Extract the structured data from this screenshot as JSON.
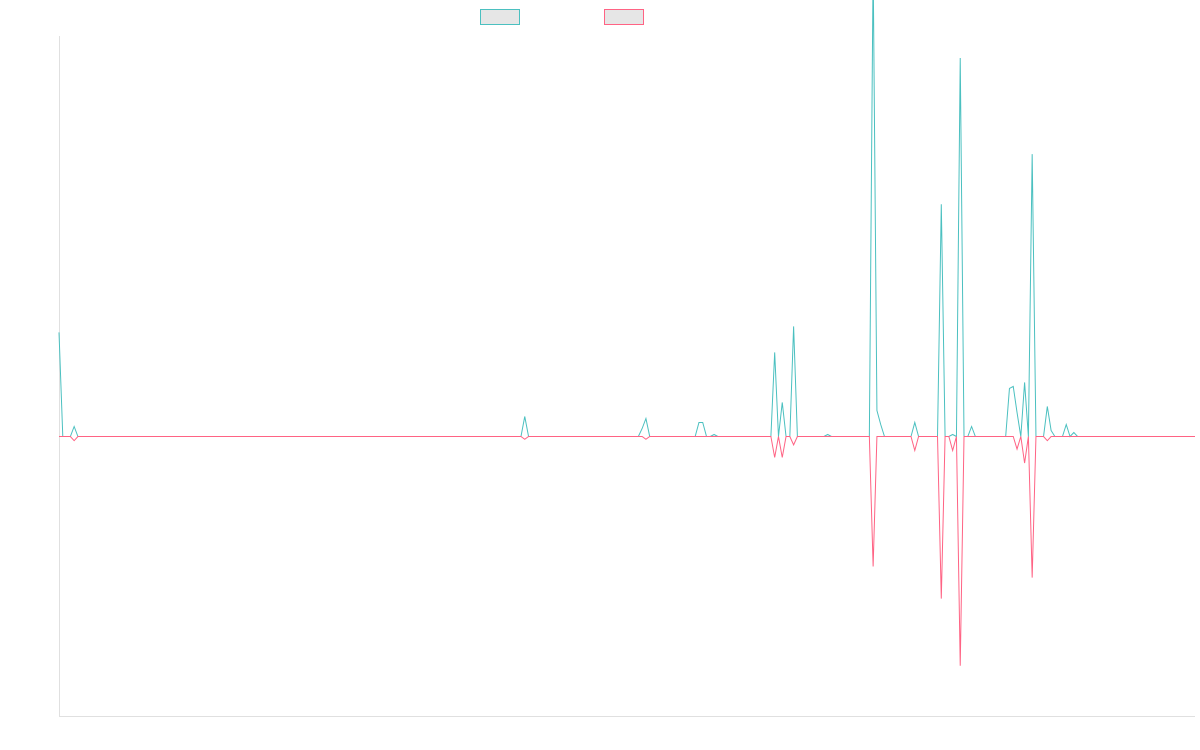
{
  "chart_data": {
    "type": "line",
    "title": "",
    "xlabel": "",
    "ylabel": "",
    "grid": false,
    "legend_position": "top-center",
    "ylim": [
      -100,
      100
    ],
    "x_count": 301,
    "series": [
      {
        "name": "",
        "color": "#4bc0c0",
        "baseline": 0,
        "points": [
          [
            0,
            26
          ],
          [
            1,
            0
          ],
          [
            2,
            0
          ],
          [
            3,
            0
          ],
          [
            4,
            2.5
          ],
          [
            5,
            0
          ],
          [
            122,
            0
          ],
          [
            123,
            5
          ],
          [
            124,
            0
          ],
          [
            153,
            0
          ],
          [
            154,
            2
          ],
          [
            155,
            4.5
          ],
          [
            156,
            0
          ],
          [
            168,
            0
          ],
          [
            169,
            3.5
          ],
          [
            170,
            3.5
          ],
          [
            171,
            0
          ],
          [
            172,
            0
          ],
          [
            173,
            0.5
          ],
          [
            174,
            0
          ],
          [
            188,
            0
          ],
          [
            189,
            21
          ],
          [
            190,
            0
          ],
          [
            191,
            8.5
          ],
          [
            192,
            0
          ],
          [
            193,
            0
          ],
          [
            194,
            27.5
          ],
          [
            195,
            0
          ],
          [
            202,
            0
          ],
          [
            203,
            0.5
          ],
          [
            204,
            0
          ],
          [
            214,
            0
          ],
          [
            215,
            118
          ],
          [
            216,
            6.5
          ],
          [
            217,
            3
          ],
          [
            218,
            0
          ],
          [
            225,
            0
          ],
          [
            226,
            3.5
          ],
          [
            227,
            0
          ],
          [
            232,
            0
          ],
          [
            233,
            58
          ],
          [
            234,
            0
          ],
          [
            235,
            0
          ],
          [
            236,
            0.5
          ],
          [
            237,
            0
          ],
          [
            238,
            94.5
          ],
          [
            239,
            0
          ],
          [
            240,
            0
          ],
          [
            241,
            2.5
          ],
          [
            242,
            0
          ],
          [
            250,
            0
          ],
          [
            251,
            12
          ],
          [
            252,
            12.5
          ],
          [
            253,
            6
          ],
          [
            254,
            0
          ],
          [
            255,
            13.5
          ],
          [
            256,
            0
          ],
          [
            257,
            70.5
          ],
          [
            258,
            0
          ],
          [
            260,
            0
          ],
          [
            261,
            7.5
          ],
          [
            262,
            1.5
          ],
          [
            263,
            0
          ],
          [
            264,
            0
          ],
          [
            265,
            0
          ],
          [
            266,
            3
          ],
          [
            267,
            0
          ],
          [
            268,
            1
          ],
          [
            269,
            0
          ],
          [
            300,
            0
          ]
        ]
      },
      {
        "name": "",
        "color": "#ff6384",
        "baseline": 0,
        "points": [
          [
            0,
            0
          ],
          [
            3,
            0
          ],
          [
            4,
            -1.5
          ],
          [
            5,
            0
          ],
          [
            122,
            0
          ],
          [
            123,
            -1
          ],
          [
            124,
            0
          ],
          [
            154,
            0
          ],
          [
            155,
            -1
          ],
          [
            156,
            0
          ],
          [
            188,
            0
          ],
          [
            189,
            -7.5
          ],
          [
            190,
            0
          ],
          [
            191,
            -7.5
          ],
          [
            192,
            0
          ],
          [
            193,
            0
          ],
          [
            194,
            -3
          ],
          [
            195,
            0
          ],
          [
            214,
            0
          ],
          [
            215,
            -46.5
          ],
          [
            216,
            0
          ],
          [
            225,
            0
          ],
          [
            226,
            -5
          ],
          [
            227,
            0
          ],
          [
            232,
            0
          ],
          [
            233,
            -58
          ],
          [
            234,
            0
          ],
          [
            235,
            0
          ],
          [
            236,
            -5
          ],
          [
            237,
            0
          ],
          [
            238,
            -82
          ],
          [
            239,
            0
          ],
          [
            252,
            0
          ],
          [
            253,
            -4.5
          ],
          [
            254,
            0
          ],
          [
            255,
            -9.5
          ],
          [
            256,
            0
          ],
          [
            257,
            -50.5
          ],
          [
            258,
            0
          ],
          [
            260,
            0
          ],
          [
            261,
            -1.5
          ],
          [
            262,
            0
          ],
          [
            300,
            0
          ]
        ]
      }
    ]
  }
}
